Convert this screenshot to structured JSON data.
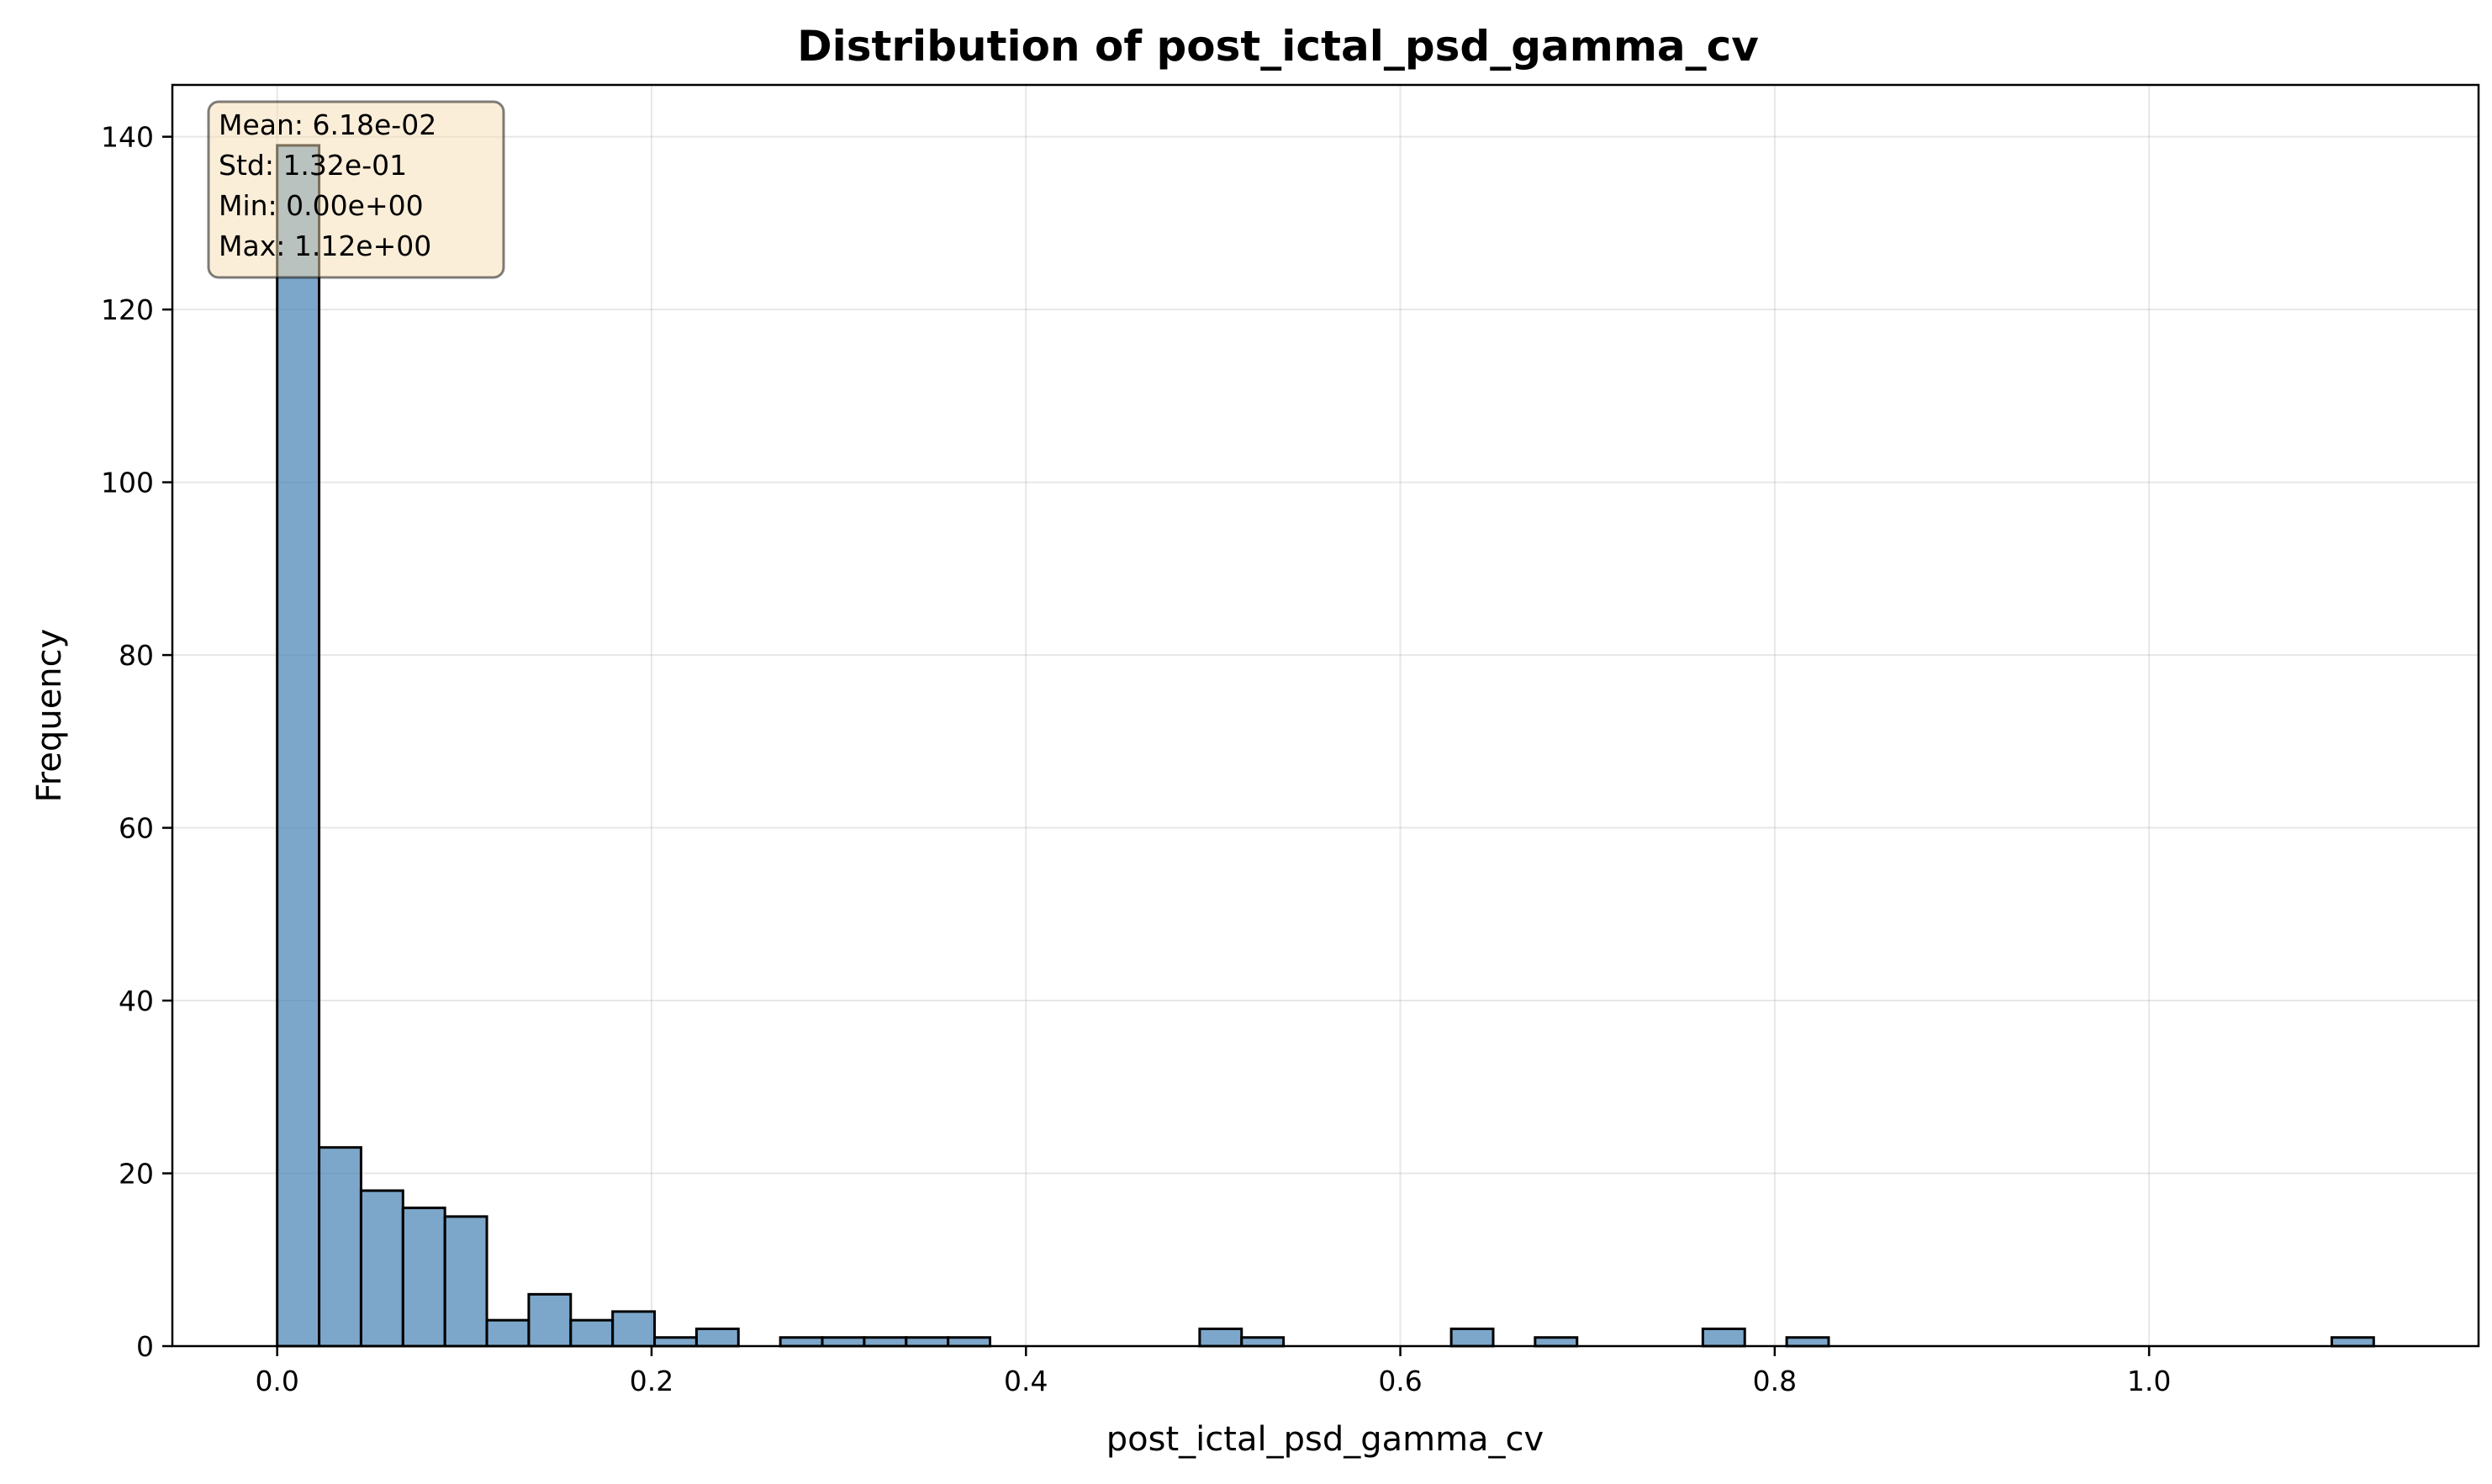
{
  "chart_data": {
    "type": "bar",
    "title": "Distribution of post_ictal_psd_gamma_cv",
    "xlabel": "post_ictal_psd_gamma_cv",
    "ylabel": "Frequency",
    "xlim": [
      -0.056,
      1.176
    ],
    "ylim": [
      0,
      146
    ],
    "xticks": [
      0.0,
      0.2,
      0.4,
      0.6,
      0.8,
      1.0
    ],
    "xtick_labels": [
      "0.0",
      "0.2",
      "0.4",
      "0.6",
      "0.8",
      "1.0"
    ],
    "yticks": [
      0,
      20,
      40,
      60,
      80,
      100,
      120,
      140
    ],
    "ytick_labels": [
      "0",
      "20",
      "40",
      "60",
      "80",
      "100",
      "120",
      "140"
    ],
    "grid": true,
    "bin_start": 0.0,
    "bin_width": 0.0224,
    "counts": [
      139,
      23,
      18,
      16,
      15,
      3,
      6,
      3,
      4,
      1,
      2,
      0,
      1,
      1,
      1,
      1,
      1,
      0,
      0,
      0,
      0,
      0,
      2,
      1,
      0,
      0,
      0,
      0,
      2,
      0,
      1,
      0,
      0,
      0,
      2,
      0,
      1,
      0,
      0,
      0,
      0,
      0,
      0,
      0,
      0,
      0,
      0,
      0,
      0,
      1
    ],
    "bar_color": "#4682b4",
    "edge_color": "#000000",
    "stats_box": {
      "lines": [
        "Mean: 6.18e-02",
        "Std: 1.32e-01",
        "Min: 0.00e+00",
        "Max: 1.12e+00"
      ],
      "position": "top-left",
      "facecolor": "#f5deb3"
    }
  }
}
